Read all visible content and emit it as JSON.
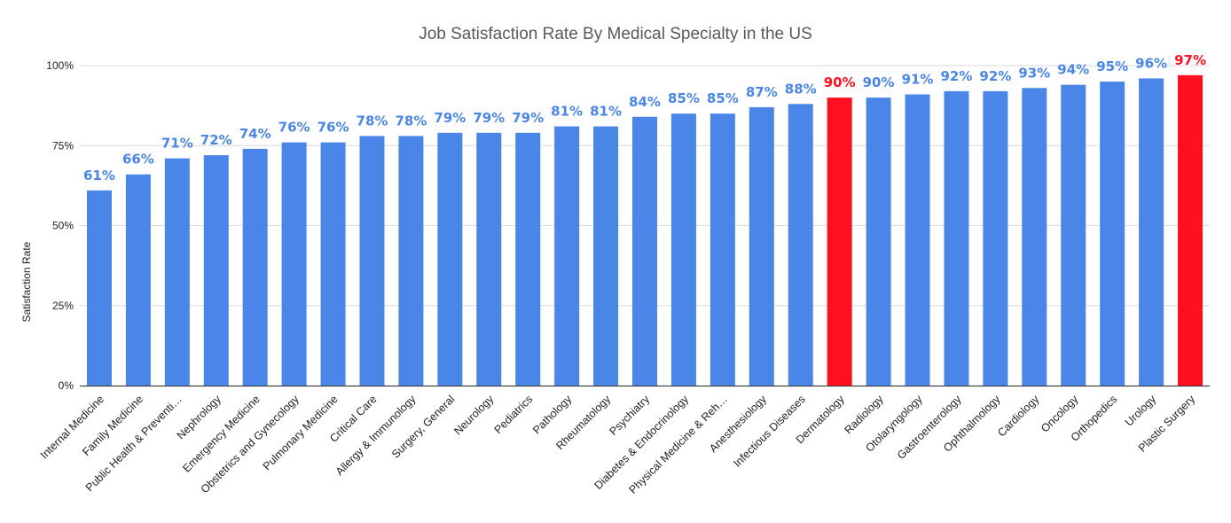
{
  "chart_data": {
    "type": "bar",
    "title": "Job Satisfaction Rate By Medical Specialty in the US",
    "xlabel": "",
    "ylabel": "Satisfaction Rate",
    "ylim": [
      0,
      100
    ],
    "yticks": [
      0,
      25,
      50,
      75,
      100
    ],
    "ytick_labels": [
      "0%",
      "25%",
      "50%",
      "75%",
      "100%"
    ],
    "grid": true,
    "legend": "none",
    "colors": {
      "default": "#4a86e8",
      "highlight": "#ff0f1f",
      "label_default": "#4a86e8",
      "label_highlight": "#ff0f1f",
      "grid": "#d9d9d9",
      "axis": "#333333"
    },
    "categories": [
      "Internal Medicine",
      "Family Medicine",
      "Public Health & Preventi…",
      "Nephrology",
      "Emergency Medicine",
      "Obstetrics and Gynecology",
      "Pulmonary Medicine",
      "Critical Care",
      "Allergy & Immunology",
      "Surgery, General",
      "Neurology",
      "Pediatrics",
      "Pathology",
      "Rheumatology",
      "Psychiatry",
      "Diabetes & Endocrinology",
      "Physical Medicine & Reh…",
      "Anesthesiology",
      "Infectious Diseases",
      "Dermatology",
      "Radiology",
      "Otolaryngology",
      "Gastroenterology",
      "Ophthalmology",
      "Cardiology",
      "Oncology",
      "Orthopedics",
      "Urology",
      "Plastic Surgery"
    ],
    "values": [
      61,
      66,
      71,
      72,
      74,
      76,
      76,
      78,
      78,
      79,
      79,
      79,
      81,
      81,
      84,
      85,
      85,
      87,
      88,
      90,
      90,
      91,
      92,
      92,
      93,
      94,
      95,
      96,
      97
    ],
    "data_labels": [
      "61%",
      "66%",
      "71%",
      "72%",
      "74%",
      "76%",
      "76%",
      "78%",
      "78%",
      "79%",
      "79%",
      "79%",
      "81%",
      "81%",
      "84%",
      "85%",
      "85%",
      "87%",
      "88%",
      "90%",
      "90%",
      "91%",
      "92%",
      "92%",
      "93%",
      "94%",
      "95%",
      "96%",
      "97%"
    ],
    "highlighted": [
      "Dermatology",
      "Plastic Surgery"
    ]
  }
}
